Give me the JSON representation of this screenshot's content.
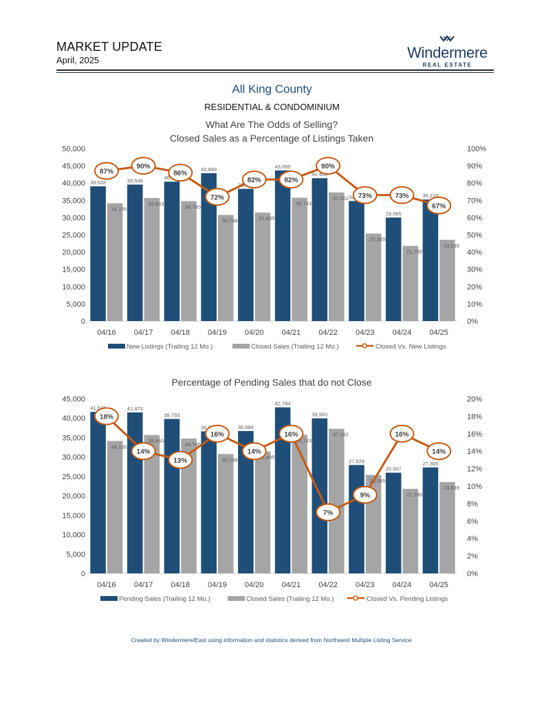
{
  "header": {
    "title": "MARKET UPDATE",
    "date": "April, 2025",
    "brand": "Windermere",
    "brand_sub": "REAL ESTATE"
  },
  "region": "All King County",
  "property_type": "RESIDENTIAL & CONDOMINIUM",
  "footer": "Created by Windermere/East using information and statistics derived from Northwest Multiple Listing Service.",
  "colors": {
    "blue": "#1f4e79",
    "gray": "#a5a5a5",
    "orange": "#c55a11"
  },
  "chart_data": [
    {
      "type": "bar",
      "title": "What Are The Odds of Selling?",
      "subtitle": "Closed Sales as a Percentage of Listings Taken",
      "categories": [
        "04/16",
        "04/17",
        "04/18",
        "04/19",
        "04/20",
        "04/21",
        "04/22",
        "04/23",
        "04/24",
        "04/25"
      ],
      "ylim": [
        0,
        50000
      ],
      "yticks": [
        "0",
        "5,000",
        "10,000",
        "15,000",
        "20,000",
        "25,000",
        "30,000",
        "35,000",
        "40,000",
        "45,000",
        "50,000"
      ],
      "y2lim": [
        0,
        100
      ],
      "y2ticks": [
        "0%",
        "10%",
        "20%",
        "30%",
        "40%",
        "50%",
        "60%",
        "70%",
        "80%",
        "90%",
        "100%"
      ],
      "series": [
        {
          "name": "New Listings (Trailing 12 Mo.)",
          "kind": "bar",
          "values": [
            39033,
            39549,
            40400,
            42849,
            38300,
            43650,
            41400,
            34800,
            29995,
            35218
          ],
          "labels": [
            "39,033",
            "39,549",
            "40,400",
            "42,849",
            "38,300",
            "43,650",
            "41,400",
            "34,800",
            "29,995",
            "35,218"
          ]
        },
        {
          "name": "Closed Sales (Trailing 12 Mo.)",
          "kind": "bar",
          "values": [
            34135,
            35663,
            34745,
            30748,
            31435,
            35743,
            37262,
            25365,
            21780,
            23539
          ],
          "labels": [
            "34,135",
            "35,663",
            "34,745",
            "30,748",
            "31,435",
            "35,743",
            "37,262",
            "25,365",
            "21,780",
            "23,539"
          ]
        },
        {
          "name": "Closed Vs. New Listings",
          "kind": "line",
          "axis": "right",
          "values": [
            87,
            90,
            86,
            72,
            82,
            82,
            90,
            73,
            73,
            67
          ],
          "labels": [
            "87%",
            "90%",
            "86%",
            "72%",
            "82%",
            "82%",
            "90%",
            "73%",
            "73%",
            "67%"
          ]
        }
      ]
    },
    {
      "type": "bar",
      "title": "Percentage of Pending Sales that do not Close",
      "categories": [
        "04/16",
        "04/17",
        "04/18",
        "04/19",
        "04/20",
        "04/21",
        "04/22",
        "04/23",
        "04/24",
        "04/25"
      ],
      "ylim": [
        0,
        45000
      ],
      "yticks": [
        "0",
        "5,000",
        "10,000",
        "15,000",
        "20,000",
        "25,000",
        "30,000",
        "35,000",
        "40,000",
        "45,000"
      ],
      "y2lim": [
        0,
        20
      ],
      "y2ticks": [
        "0%",
        "2%",
        "4%",
        "6%",
        "8%",
        "10%",
        "12%",
        "14%",
        "16%",
        "18%",
        "20%"
      ],
      "series": [
        {
          "name": "Pending Sales (Trailing 12 Mo.)",
          "kind": "bar",
          "values": [
            41611,
            41473,
            39793,
            36600,
            36689,
            42784,
            39950,
            27929,
            25947,
            27300
          ],
          "labels": [
            "41,611",
            "41,473",
            "39,793",
            "36,600",
            "36,689",
            "42,784",
            "39,950",
            "27,929",
            "25,947",
            "27,300"
          ]
        },
        {
          "name": "Closed Sales (Trailing 12 Mo.)",
          "kind": "bar",
          "values": [
            34135,
            35663,
            34745,
            30748,
            31435,
            35743,
            37262,
            25365,
            21780,
            23539
          ],
          "labels": [
            "34,135",
            "35,663",
            "34,745",
            "30,748",
            "31,435",
            "35,743",
            "37,262",
            "25,365",
            "21,780",
            "23,539"
          ]
        },
        {
          "name": "Closed Vs. Pending Listings",
          "kind": "line",
          "axis": "right",
          "values": [
            18,
            14,
            13,
            16,
            14,
            16,
            7,
            9,
            16,
            14
          ],
          "labels": [
            "18%",
            "14%",
            "13%",
            "16%",
            "14%",
            "16%",
            "7%",
            "9%",
            "16%",
            "14%"
          ]
        }
      ]
    }
  ]
}
